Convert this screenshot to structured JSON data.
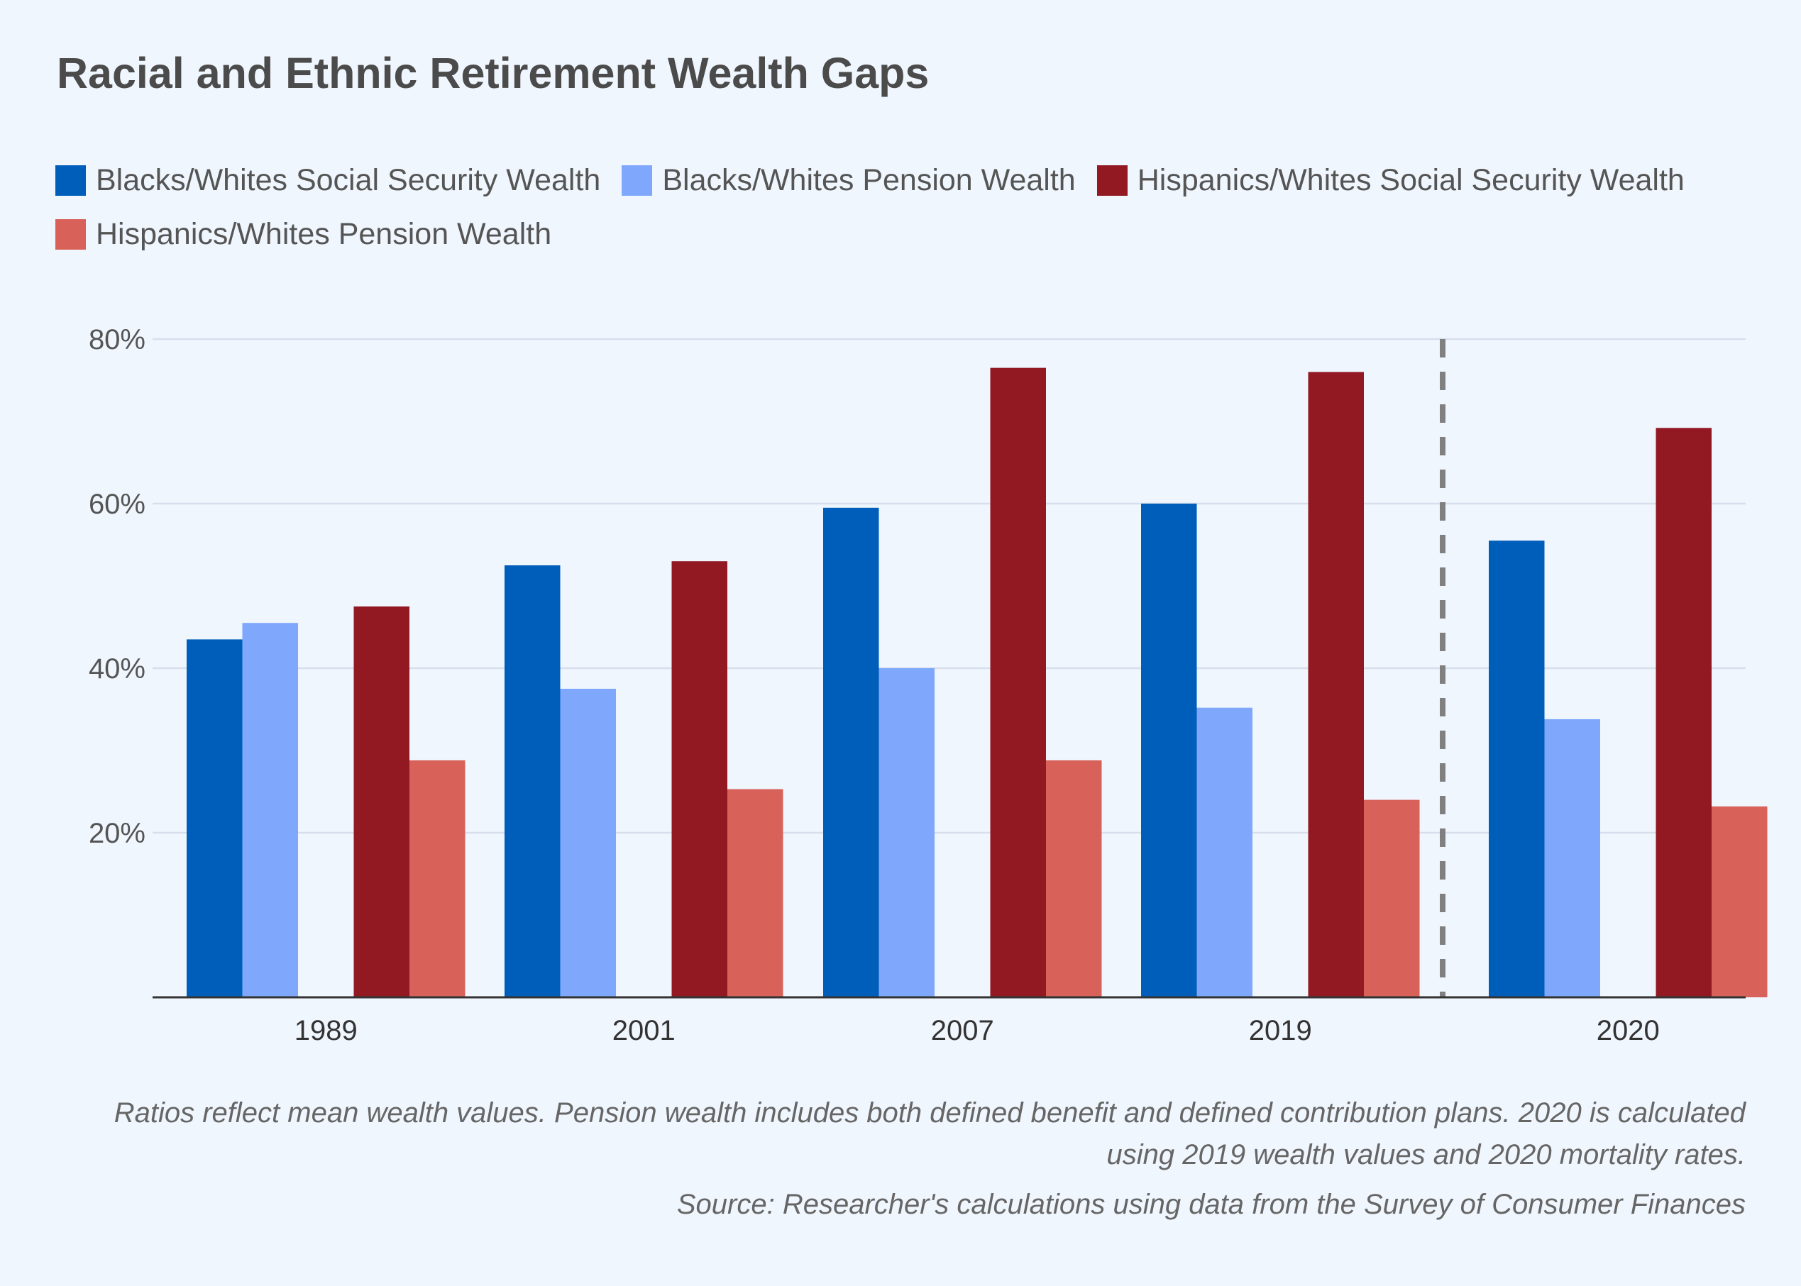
{
  "chart_data": {
    "type": "bar",
    "title": "Racial and Ethnic Retirement Wealth Gaps",
    "categories": [
      "1989",
      "2001",
      "2007",
      "2019",
      "2020"
    ],
    "series": [
      {
        "name": "Blacks/Whites Social Security Wealth",
        "color": "#005ebb",
        "values": [
          43.5,
          52.5,
          59.5,
          60,
          55.5
        ]
      },
      {
        "name": "Blacks/Whites Pension Wealth",
        "color": "#7fa8fd",
        "values": [
          45.5,
          37.5,
          40,
          35.2,
          33.8
        ]
      },
      {
        "name": "Hispanics/Whites Social Security Wealth",
        "color": "#921922",
        "values": [
          47.5,
          53,
          76.5,
          76,
          69.2
        ]
      },
      {
        "name": "Hispanics/Whites Pension Wealth",
        "color": "#d8625a",
        "values": [
          28.8,
          25.3,
          28.8,
          24,
          23.2
        ]
      }
    ],
    "yticks": [
      "20%",
      "40%",
      "60%",
      "80%"
    ],
    "ytick_values": [
      20,
      40,
      60,
      80
    ],
    "ylim": [
      0,
      80
    ],
    "grid": true,
    "legend_position": "top-left",
    "divider_before_category": "2020",
    "notes": "Ratios reflect mean wealth values. Pension wealth includes both defined benefit and defined contribution plans. 2020 is calculated using 2019 wealth values and 2020 mortality rates.",
    "source": "Source: Researcher's calculations using data from the Survey of Consumer Finances"
  }
}
